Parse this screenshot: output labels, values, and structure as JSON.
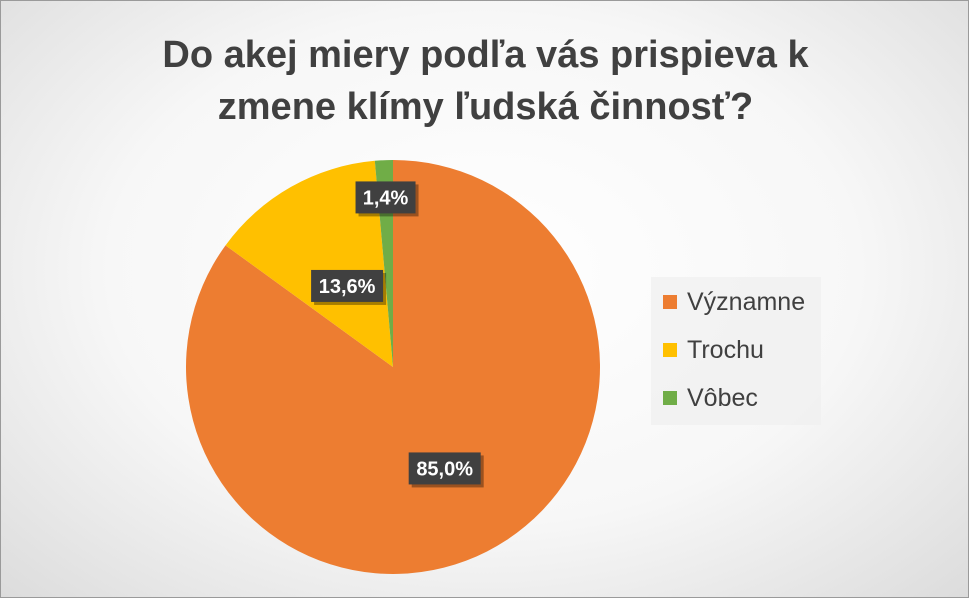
{
  "chart_data": {
    "type": "pie",
    "title_lines": [
      "Do akej miery podľa vás prispieva k",
      "zmene klímy ľudská činnosť?"
    ],
    "categories": [
      "Významne",
      "Trochu",
      "Vôbec"
    ],
    "values": [
      85.0,
      13.6,
      1.4
    ],
    "data_labels": [
      "85,0%",
      "13,6%",
      "1,4%"
    ],
    "colors": [
      "#ed7d31",
      "#ffc000",
      "#70ad47"
    ],
    "legend_position": "right",
    "start_angle_deg": 0,
    "direction": "clockwise"
  }
}
